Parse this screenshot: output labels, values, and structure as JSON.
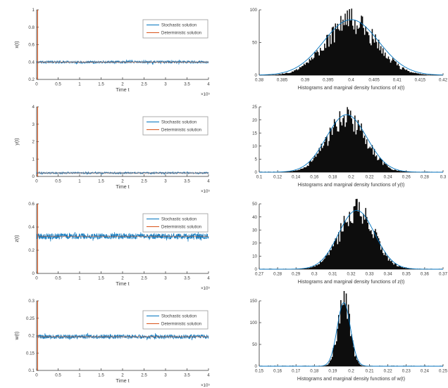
{
  "palette": {
    "matlab_blue": "#0072BD",
    "matlab_orange": "#D95319",
    "hist_fill": "#0d0d0d",
    "axis_color": "#333333",
    "text_color": "#3a3a3a",
    "legend_border": "#999999",
    "background": "#ffffff"
  },
  "legend": {
    "stochastic_label": "Stochastic solution",
    "deterministic_label": "Deterministic solution"
  },
  "chart_data": [
    {
      "id": "x-timeseries",
      "type": "line",
      "xlabel": "Time t",
      "ylabel": "x(t)",
      "x_multiplier": "×10⁵",
      "xlim": [
        0,
        4
      ],
      "xticks": [
        "0",
        "0.5",
        "1",
        "1.5",
        "2",
        "2.5",
        "3",
        "3.5",
        "4"
      ],
      "ylim": [
        0.2,
        1
      ],
      "yticks": [
        "0.2",
        "0.4",
        "0.6",
        "0.8",
        "1"
      ],
      "legend": [
        "Stochastic solution",
        "Deterministic solution"
      ],
      "series": [
        {
          "name": "Stochastic solution",
          "kind": "noise",
          "mean": 0.4,
          "amplitude": 0.015,
          "color": "matlab_blue"
        },
        {
          "name": "Deterministic solution",
          "kind": "equilibrium",
          "value": 0.4,
          "initial_transient": [
            0.2,
            1.0
          ],
          "color": "matlab_orange"
        }
      ]
    },
    {
      "id": "x-histogram",
      "type": "histogram",
      "xlabel": "Histograms and marginal density functions of x(t)",
      "xlim": [
        0.38,
        0.42
      ],
      "xticks": [
        "0.38",
        "0.385",
        "0.39",
        "0.395",
        "0.4",
        "0.405",
        "0.41",
        "0.415",
        "0.42"
      ],
      "ylim": [
        0,
        100
      ],
      "yticks": [
        "0",
        "50",
        "100"
      ],
      "histogram": {
        "mean": 0.4,
        "sigma": 0.0055,
        "peak": 80,
        "color": "hist_fill"
      },
      "density_curve": {
        "mean": 0.4,
        "sigma": 0.006,
        "peak": 85,
        "color": "matlab_blue"
      }
    },
    {
      "id": "y-timeseries",
      "type": "line",
      "xlabel": "Time t",
      "ylabel": "y(t)",
      "x_multiplier": "×10⁵",
      "xlim": [
        0,
        4
      ],
      "xticks": [
        "0",
        "0.5",
        "1",
        "1.5",
        "2",
        "2.5",
        "3",
        "3.5",
        "4"
      ],
      "ylim": [
        0,
        4
      ],
      "yticks": [
        "0",
        "1",
        "2",
        "3",
        "4"
      ],
      "legend": [
        "Stochastic solution",
        "Deterministic solution"
      ],
      "series": [
        {
          "name": "Stochastic solution",
          "kind": "noise",
          "mean": 0.2,
          "amplitude": 0.05,
          "color": "matlab_blue"
        },
        {
          "name": "Deterministic solution",
          "kind": "equilibrium",
          "value": 0.2,
          "initial_transient": [
            0,
            4
          ],
          "color": "matlab_orange"
        }
      ]
    },
    {
      "id": "y-histogram",
      "type": "histogram",
      "xlabel": "Histograms and marginal density functions of y(t)",
      "xlim": [
        0.1,
        0.3
      ],
      "xticks": [
        "0.1",
        "0.12",
        "0.14",
        "0.16",
        "0.18",
        "0.2",
        "0.22",
        "0.24",
        "0.26",
        "0.28",
        "0.3"
      ],
      "ylim": [
        0,
        25
      ],
      "yticks": [
        "0",
        "5",
        "10",
        "15",
        "20",
        "25"
      ],
      "histogram": {
        "mean": 0.195,
        "sigma": 0.021,
        "peak": 20,
        "color": "hist_fill"
      },
      "density_curve": {
        "mean": 0.195,
        "sigma": 0.022,
        "peak": 22,
        "color": "matlab_blue"
      }
    },
    {
      "id": "z-timeseries",
      "type": "line",
      "xlabel": "Time t",
      "ylabel": "z(t)",
      "x_multiplier": "×10⁵",
      "xlim": [
        0,
        4
      ],
      "xticks": [
        "0",
        "0.5",
        "1",
        "1.5",
        "2",
        "2.5",
        "3",
        "3.5",
        "4"
      ],
      "ylim": [
        0,
        0.6
      ],
      "yticks": [
        "0",
        "0.2",
        "0.4",
        "0.6"
      ],
      "legend": [
        "Stochastic solution",
        "Deterministic solution"
      ],
      "series": [
        {
          "name": "Stochastic solution",
          "kind": "noise",
          "mean": 0.32,
          "amplitude": 0.025,
          "color": "matlab_blue"
        },
        {
          "name": "Deterministic solution",
          "kind": "equilibrium",
          "value": 0.32,
          "initial_transient": [
            0,
            0.6
          ],
          "color": "matlab_orange"
        }
      ]
    },
    {
      "id": "z-histogram",
      "type": "histogram",
      "xlabel": "Histograms and marginal density functions of z(t)",
      "xlim": [
        0.27,
        0.37
      ],
      "xticks": [
        "0.27",
        "0.28",
        "0.29",
        "0.3",
        "0.31",
        "0.32",
        "0.33",
        "0.34",
        "0.35",
        "0.36",
        "0.37"
      ],
      "ylim": [
        0,
        50
      ],
      "yticks": [
        "0",
        "10",
        "20",
        "30",
        "40",
        "50"
      ],
      "histogram": {
        "mean": 0.323,
        "sigma": 0.0095,
        "peak": 43,
        "color": "hist_fill"
      },
      "density_curve": {
        "mean": 0.323,
        "sigma": 0.0098,
        "peak": 45,
        "color": "matlab_blue"
      }
    },
    {
      "id": "w-timeseries",
      "type": "line",
      "xlabel": "Time t",
      "ylabel": "w(t)",
      "x_multiplier": "×10⁵",
      "xlim": [
        0,
        4
      ],
      "xticks": [
        "0",
        "0.5",
        "1",
        "1.5",
        "2",
        "2.5",
        "3",
        "3.5",
        "4"
      ],
      "ylim": [
        0.1,
        0.3
      ],
      "yticks": [
        "0.1",
        "0.15",
        "0.2",
        "0.25",
        "0.3"
      ],
      "legend": [
        "Stochastic solution",
        "Deterministic solution"
      ],
      "series": [
        {
          "name": "Stochastic solution",
          "kind": "noise",
          "mean": 0.197,
          "amplitude": 0.006,
          "color": "matlab_blue"
        },
        {
          "name": "Deterministic solution",
          "kind": "equilibrium",
          "value": 0.197,
          "initial_transient": [
            0.1,
            0.3
          ],
          "color": "matlab_orange"
        }
      ]
    },
    {
      "id": "w-histogram",
      "type": "histogram",
      "xlabel": "Histograms and marginal density functions of w(t)",
      "xlim": [
        0.15,
        0.25
      ],
      "xticks": [
        "0.15",
        "0.16",
        "0.17",
        "0.18",
        "0.19",
        "0.2",
        "0.21",
        "0.22",
        "0.23",
        "0.24",
        "0.25"
      ],
      "ylim": [
        0,
        150
      ],
      "yticks": [
        "0",
        "50",
        "100",
        "150"
      ],
      "histogram": {
        "mean": 0.196,
        "sigma": 0.0033,
        "peak": 149,
        "color": "hist_fill"
      },
      "density_curve": {
        "mean": 0.196,
        "sigma": 0.0036,
        "peak": 146,
        "color": "matlab_blue"
      }
    }
  ]
}
